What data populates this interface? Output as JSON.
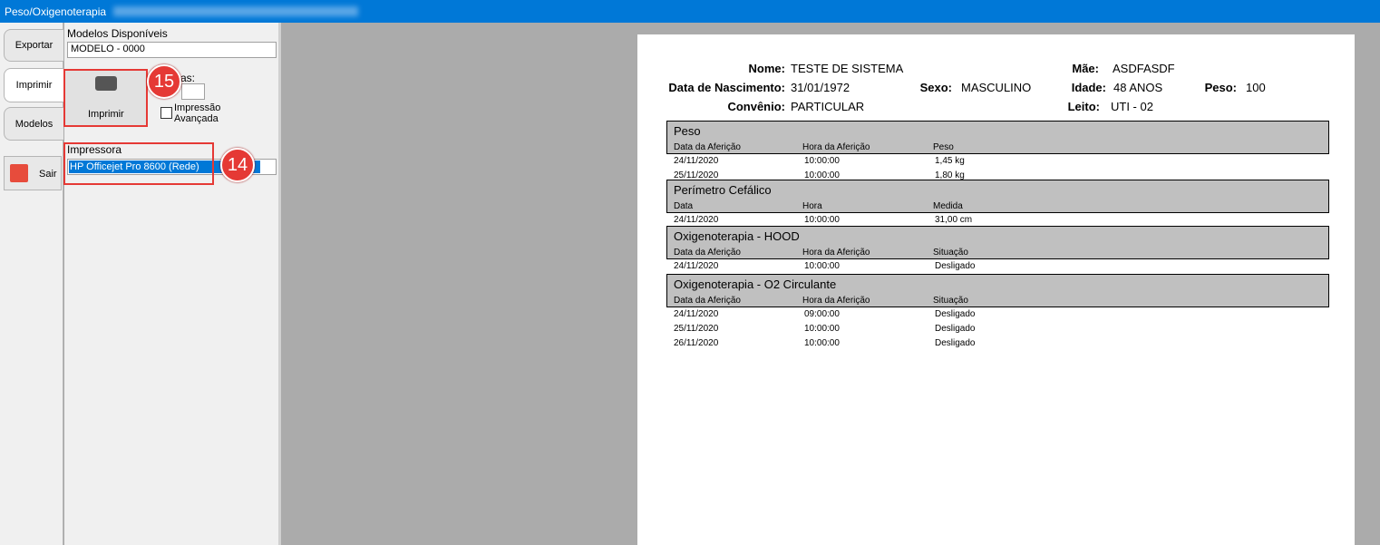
{
  "window": {
    "title": "Peso/Oxigenoterapia"
  },
  "tabs": [
    "Exportar",
    "Imprimir",
    "Modelos",
    "Sair"
  ],
  "panel": {
    "models_label": "Modelos Disponíveis",
    "model_selected": "MODELO - 0000",
    "print_button": "Imprimir",
    "copies_label": "as:",
    "advanced_print": "Impressão Avançada",
    "printer_label": "Impressora",
    "printer_selected": "HP Officejet Pro 8600 (Rede)"
  },
  "annotations": [
    "15",
    "14"
  ],
  "report": {
    "header": [
      {
        "label": "Nome:",
        "value": "TESTE DE SISTEMA"
      },
      {
        "label": "Data de Nascimento:",
        "value": "31/01/1972"
      },
      {
        "label": "Convênio:",
        "value": "PARTICULAR"
      },
      {
        "label": "Sexo:",
        "value": "MASCULINO"
      },
      {
        "label": "Mãe:",
        "value": "ASDFASDF"
      },
      {
        "label": "Idade:",
        "value": "48 ANOS"
      },
      {
        "label": "Leito:",
        "value": "UTI - 02"
      },
      {
        "label": "Peso:",
        "value": "100"
      }
    ],
    "sections": [
      {
        "title": "Peso",
        "columns": [
          "Data da Aferição",
          "Hora da Aferição",
          "Peso"
        ],
        "rows": [
          [
            "24/11/2020",
            "10:00:00",
            "1,45 kg"
          ],
          [
            "25/11/2020",
            "10:00:00",
            "1,80 kg"
          ]
        ]
      },
      {
        "title": "Perímetro Cefálico",
        "columns": [
          "Data",
          "Hora",
          "Medida"
        ],
        "rows": [
          [
            "24/11/2020",
            "10:00:00",
            "31,00 cm"
          ]
        ]
      },
      {
        "title": "Oxigenoterapia - HOOD",
        "columns": [
          "Data da Aferição",
          "Hora da Aferição",
          "Situação"
        ],
        "rows": [
          [
            "24/11/2020",
            "10:00:00",
            "Desligado"
          ]
        ]
      },
      {
        "title": "Oxigenoterapia - O2 Circulante",
        "columns": [
          "Data da Aferição",
          "Hora da Aferição",
          "Situação"
        ],
        "rows": [
          [
            "24/11/2020",
            "09:00:00",
            "Desligado"
          ],
          [
            "25/11/2020",
            "10:00:00",
            "Desligado"
          ],
          [
            "26/11/2020",
            "10:00:00",
            "Desligado"
          ]
        ]
      }
    ]
  }
}
